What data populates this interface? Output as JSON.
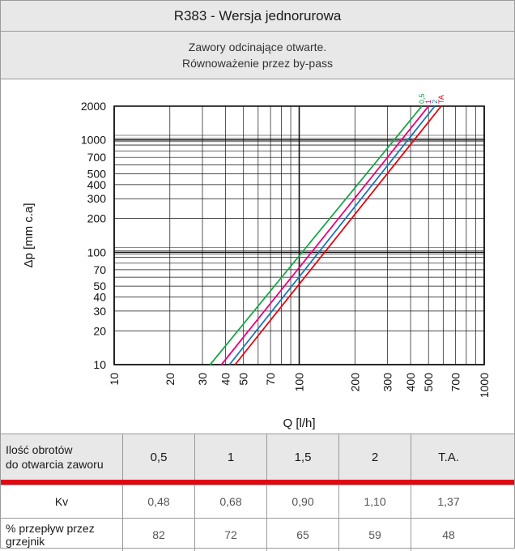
{
  "title": "R383 - Wersja jednorurowa",
  "subtitle_lines": [
    "Zawory odcinające otwarte.",
    "Równoważenie przez by-pass"
  ],
  "chart_data": {
    "type": "line",
    "xlabel": "Q [l/h]",
    "ylabel": "Δp [mm c.a]",
    "xscale": "log",
    "yscale": "log",
    "xlim": [
      10,
      1000
    ],
    "ylim": [
      10,
      2000
    ],
    "x_tick_labels": [
      "10",
      "20",
      "30",
      "40",
      "50",
      "70",
      "100",
      "200",
      "300",
      "400",
      "500",
      "700",
      "1000"
    ],
    "x_tick_values": [
      10,
      20,
      30,
      40,
      50,
      70,
      100,
      200,
      300,
      400,
      500,
      700,
      1000
    ],
    "y_tick_labels": [
      "2000",
      "1000",
      "700",
      "500",
      "400",
      "300",
      "200",
      "100",
      "70",
      "50",
      "40",
      "30",
      "20",
      "10"
    ],
    "y_tick_values": [
      2000,
      1000,
      700,
      500,
      400,
      300,
      200,
      100,
      70,
      50,
      40,
      30,
      20,
      10
    ],
    "grid": true,
    "series": [
      {
        "name": "0,5",
        "color": "#1aa64a",
        "x": [
          33,
          460
        ],
        "y": [
          10,
          2000
        ]
      },
      {
        "name": "1",
        "color": "#e6007e",
        "x": [
          38,
          500
        ],
        "y": [
          10,
          2000
        ]
      },
      {
        "name": "2",
        "color": "#1b75bb",
        "x": [
          42,
          540
        ],
        "y": [
          10,
          2000
        ]
      },
      {
        "name": "TA",
        "color": "#e30613",
        "x": [
          45,
          585
        ],
        "y": [
          10,
          2000
        ]
      }
    ]
  },
  "table": {
    "header": {
      "label_line1": "Ilość obrotów",
      "label_line2": "do otwarcia zaworu",
      "values": [
        "0,5",
        "1",
        "1,5",
        "2",
        "T.A."
      ]
    },
    "kv": {
      "label": "Kv",
      "values": [
        "0,48",
        "0,68",
        "0,90",
        "1,10",
        "1,37"
      ]
    },
    "flow": {
      "label_line1": "% przepływ przez",
      "label_line2": "grzejnik",
      "values": [
        "82",
        "72",
        "65",
        "59",
        "48"
      ]
    }
  },
  "colors": {
    "header_bg": "#e8e8e8",
    "accent_red": "#e30613",
    "border": "#9a9a9a"
  }
}
